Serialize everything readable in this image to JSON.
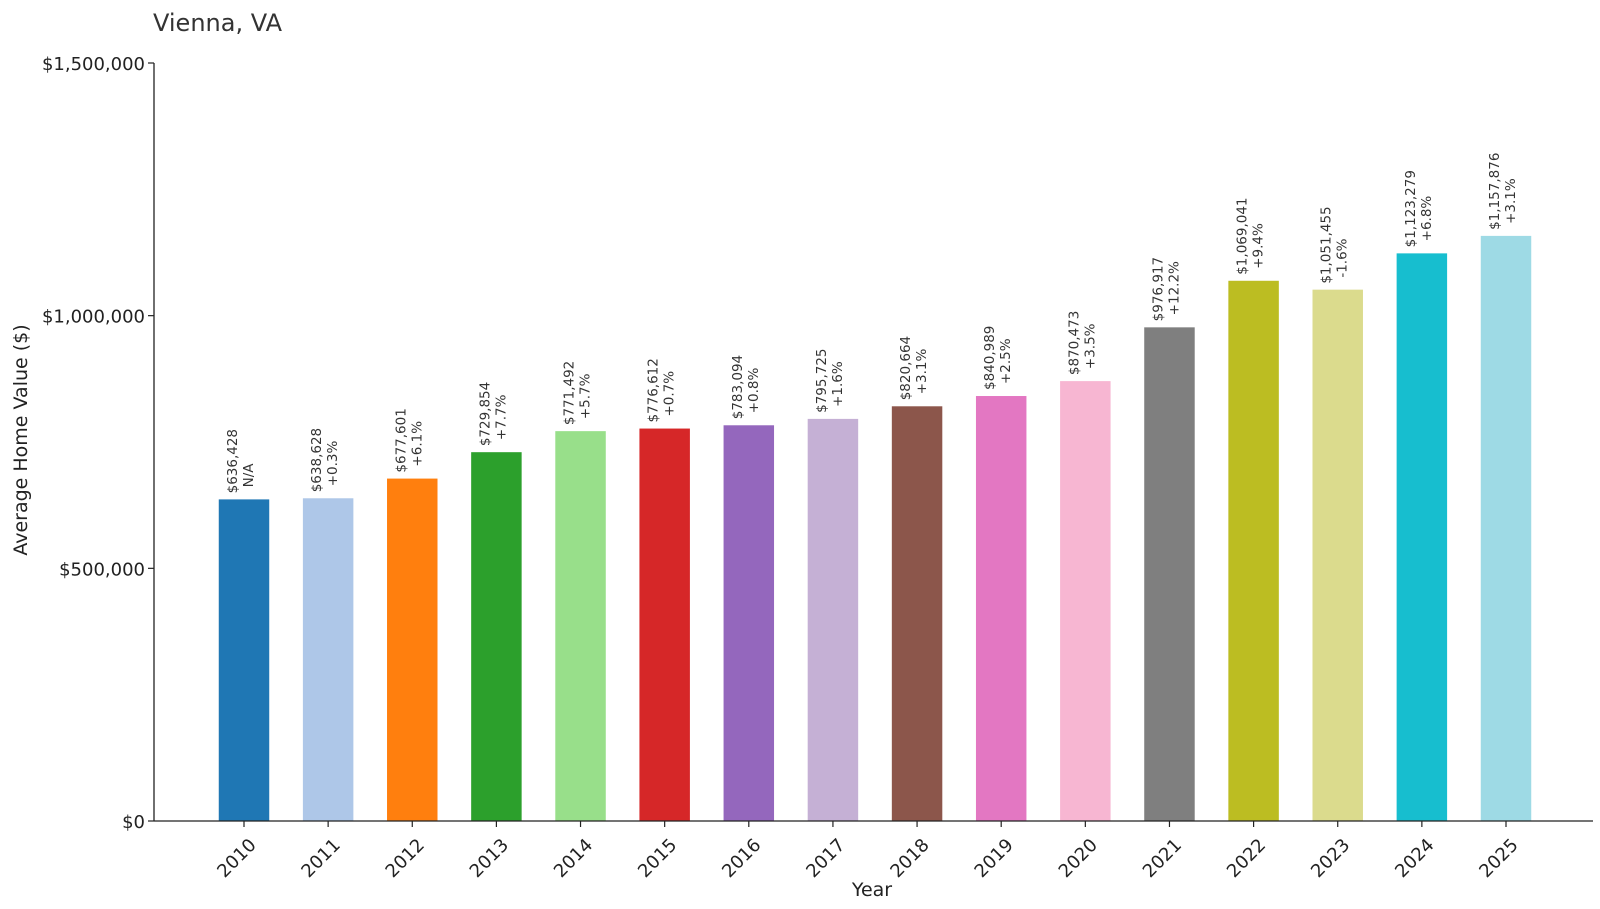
{
  "chart_data": {
    "type": "bar",
    "title": "Vienna, VA",
    "xlabel": "Year",
    "ylabel": "Average Home Value ($)",
    "ylim": [
      0,
      1500000
    ],
    "yticks": [
      0,
      500000,
      1000000,
      1500000
    ],
    "ytick_labels": [
      "$0",
      "$500,000",
      "$1,000,000",
      "$1,500,000"
    ],
    "categories": [
      "2010",
      "2011",
      "2012",
      "2013",
      "2014",
      "2015",
      "2016",
      "2017",
      "2018",
      "2019",
      "2020",
      "2021",
      "2022",
      "2023",
      "2024",
      "2025"
    ],
    "values": [
      636428,
      638628,
      677601,
      729854,
      771492,
      776612,
      783094,
      795725,
      820664,
      840989,
      870473,
      976917,
      1069041,
      1051455,
      1123279,
      1157876
    ],
    "value_labels": [
      "$636,428",
      "$638,628",
      "$677,601",
      "$729,854",
      "$771,492",
      "$776,612",
      "$783,094",
      "$795,725",
      "$820,664",
      "$840,989",
      "$870,473",
      "$976,917",
      "$1,069,041",
      "$1,051,455",
      "$1,123,279",
      "$1,157,876"
    ],
    "change_labels": [
      "N/A",
      "+0.3%",
      "+6.1%",
      "+7.7%",
      "+5.7%",
      "+0.7%",
      "+0.8%",
      "+1.6%",
      "+3.1%",
      "+2.5%",
      "+3.5%",
      "+12.2%",
      "+9.4%",
      "-1.6%",
      "+6.8%",
      "+3.1%"
    ],
    "colors": [
      "#1f77b4",
      "#aec7e8",
      "#ff7f0e",
      "#2ca02c",
      "#98df8a",
      "#d62728",
      "#9467bd",
      "#c5b0d5",
      "#8c564b",
      "#e377c2",
      "#f7b6d2",
      "#7f7f7f",
      "#bcbd22",
      "#dbdb8d",
      "#17becf",
      "#9edae5"
    ],
    "grid": false,
    "legend": "none"
  }
}
